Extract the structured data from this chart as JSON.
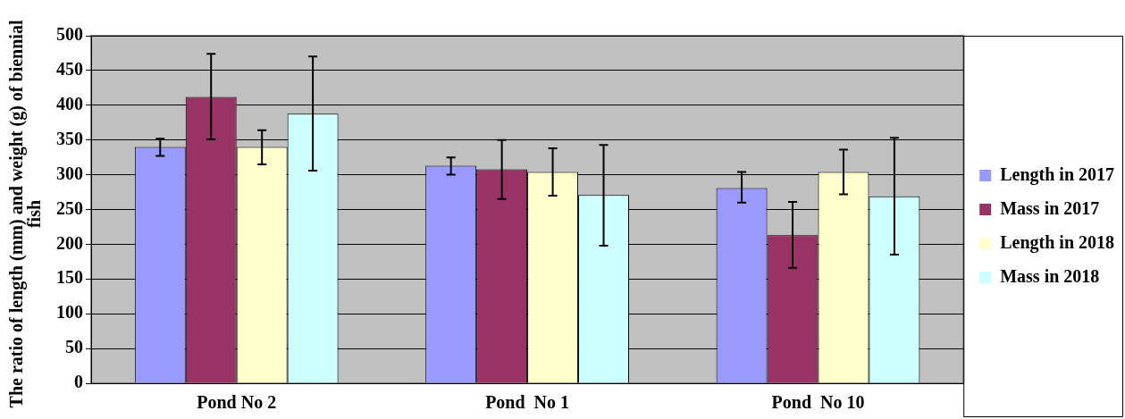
{
  "chart_data": {
    "type": "bar",
    "ylabel": "The ratio of length (mm) and weight (g) of biennial fish",
    "categories": [
      "Pond No 2",
      "Pond  No 1",
      "Pond  No 10"
    ],
    "series": [
      {
        "name": "Length in 2017",
        "color": "#9999ff",
        "values": [
          340,
          313,
          281
        ],
        "errors": [
          [
            327,
            352
          ],
          [
            300,
            325
          ],
          [
            260,
            304
          ]
        ]
      },
      {
        "name": "Mass in 2017",
        "color": "#993366",
        "values": [
          412,
          308,
          213
        ],
        "errors": [
          [
            351,
            474
          ],
          [
            265,
            350
          ],
          [
            166,
            261
          ]
        ]
      },
      {
        "name": "Length in 2018",
        "color": "#ffffcc",
        "values": [
          340,
          304,
          304
        ],
        "errors": [
          [
            315,
            364
          ],
          [
            270,
            338
          ],
          [
            272,
            336
          ]
        ]
      },
      {
        "name": "Mass in 2018",
        "color": "#ccffff",
        "values": [
          388,
          271,
          269
        ],
        "errors": [
          [
            306,
            470
          ],
          [
            198,
            343
          ],
          [
            185,
            353
          ]
        ]
      }
    ],
    "ylim": [
      0,
      500
    ],
    "yticks": [
      0,
      50,
      100,
      150,
      200,
      250,
      300,
      350,
      400,
      450,
      500
    ],
    "grid": "y",
    "legend": "right"
  }
}
